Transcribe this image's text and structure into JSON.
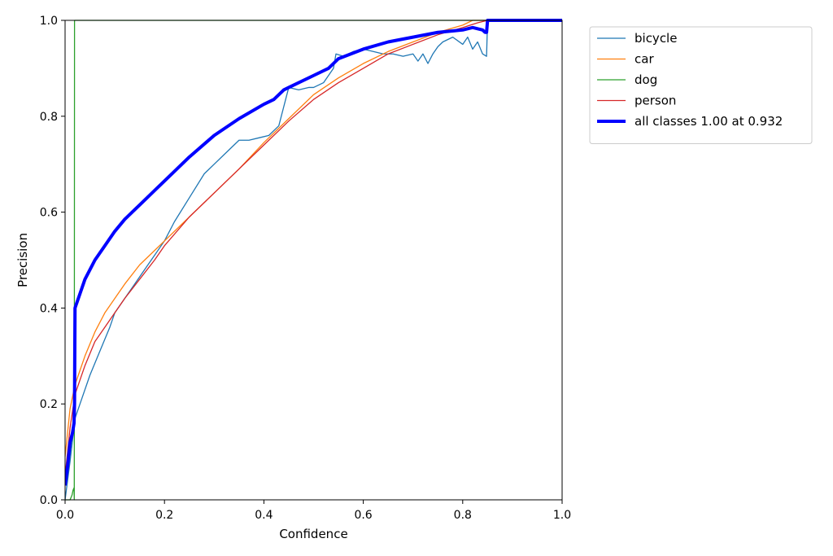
{
  "chart_data": {
    "type": "line",
    "title": "",
    "xlabel": "Confidence",
    "ylabel": "Precision",
    "xlim": [
      0,
      1
    ],
    "ylim": [
      0,
      1
    ],
    "xticks": [
      "0.0",
      "0.2",
      "0.4",
      "0.6",
      "0.8",
      "1.0"
    ],
    "yticks": [
      "0.0",
      "0.2",
      "0.4",
      "0.6",
      "0.8",
      "1.0"
    ],
    "grid": false,
    "legend_position": "outside-top-right",
    "series": [
      {
        "name": "bicycle",
        "color": "#1f77b4",
        "line_weight": "thin",
        "x": [
          0.0,
          0.01,
          0.02,
          0.03,
          0.05,
          0.07,
          0.09,
          0.1,
          0.12,
          0.14,
          0.16,
          0.18,
          0.2,
          0.22,
          0.25,
          0.28,
          0.3,
          0.33,
          0.35,
          0.37,
          0.39,
          0.41,
          0.43,
          0.44,
          0.45,
          0.47,
          0.49,
          0.5,
          0.52,
          0.54,
          0.545,
          0.56,
          0.58,
          0.6,
          0.62,
          0.64,
          0.66,
          0.68,
          0.7,
          0.71,
          0.72,
          0.73,
          0.74,
          0.75,
          0.76,
          0.78,
          0.8,
          0.81,
          0.82,
          0.83,
          0.84,
          0.848,
          0.85,
          0.86,
          0.9,
          1.0
        ],
        "y": [
          0.0,
          0.08,
          0.17,
          0.2,
          0.26,
          0.31,
          0.36,
          0.39,
          0.42,
          0.45,
          0.48,
          0.51,
          0.54,
          0.58,
          0.63,
          0.68,
          0.7,
          0.73,
          0.75,
          0.75,
          0.755,
          0.76,
          0.78,
          0.82,
          0.86,
          0.855,
          0.86,
          0.86,
          0.87,
          0.9,
          0.93,
          0.925,
          0.935,
          0.94,
          0.935,
          0.93,
          0.93,
          0.925,
          0.93,
          0.915,
          0.93,
          0.91,
          0.93,
          0.945,
          0.955,
          0.965,
          0.95,
          0.965,
          0.94,
          0.955,
          0.93,
          0.925,
          1.0,
          1.0,
          1.0,
          1.0
        ]
      },
      {
        "name": "car",
        "color": "#ff7f0e",
        "line_weight": "thin",
        "x": [
          0.0,
          0.01,
          0.02,
          0.04,
          0.06,
          0.08,
          0.1,
          0.12,
          0.15,
          0.18,
          0.2,
          0.25,
          0.3,
          0.35,
          0.4,
          0.45,
          0.5,
          0.55,
          0.6,
          0.65,
          0.7,
          0.75,
          0.8,
          0.82,
          0.85,
          0.9,
          1.0
        ],
        "y": [
          0.09,
          0.19,
          0.24,
          0.3,
          0.35,
          0.39,
          0.42,
          0.45,
          0.49,
          0.52,
          0.54,
          0.59,
          0.64,
          0.69,
          0.745,
          0.795,
          0.845,
          0.88,
          0.91,
          0.935,
          0.955,
          0.975,
          0.99,
          1.0,
          1.0,
          1.0,
          1.0
        ]
      },
      {
        "name": "dog",
        "color": "#2ca02c",
        "line_weight": "thin",
        "x": [
          0.0,
          0.005,
          0.01,
          0.014,
          0.016,
          0.018,
          0.0185,
          0.019,
          0.02,
          0.3,
          0.6,
          1.0
        ],
        "y": [
          0.0,
          0.0,
          0.0,
          0.01,
          0.02,
          0.025,
          0.0,
          1.0,
          1.0,
          1.0,
          1.0,
          1.0
        ]
      },
      {
        "name": "person",
        "color": "#d62728",
        "line_weight": "thin",
        "x": [
          0.0,
          0.01,
          0.02,
          0.04,
          0.06,
          0.08,
          0.1,
          0.12,
          0.15,
          0.18,
          0.2,
          0.25,
          0.3,
          0.35,
          0.4,
          0.45,
          0.5,
          0.55,
          0.6,
          0.65,
          0.7,
          0.75,
          0.8,
          0.83,
          0.85,
          0.9,
          1.0
        ],
        "y": [
          0.05,
          0.15,
          0.22,
          0.28,
          0.33,
          0.36,
          0.39,
          0.42,
          0.46,
          0.5,
          0.53,
          0.59,
          0.64,
          0.69,
          0.74,
          0.79,
          0.835,
          0.87,
          0.9,
          0.93,
          0.95,
          0.97,
          0.985,
          0.995,
          1.0,
          1.0,
          1.0
        ]
      },
      {
        "name": "all classes 1.00 at 0.932",
        "color": "#0000ff",
        "line_weight": "thick",
        "x": [
          0.0,
          0.005,
          0.01,
          0.015,
          0.018,
          0.019,
          0.02,
          0.03,
          0.04,
          0.05,
          0.06,
          0.08,
          0.1,
          0.12,
          0.15,
          0.18,
          0.2,
          0.25,
          0.3,
          0.35,
          0.4,
          0.42,
          0.43,
          0.44,
          0.45,
          0.5,
          0.53,
          0.55,
          0.6,
          0.65,
          0.7,
          0.75,
          0.78,
          0.8,
          0.82,
          0.84,
          0.845,
          0.848,
          0.85,
          0.9,
          0.932,
          1.0
        ],
        "y": [
          0.03,
          0.07,
          0.12,
          0.14,
          0.16,
          0.2,
          0.4,
          0.43,
          0.46,
          0.48,
          0.5,
          0.53,
          0.56,
          0.585,
          0.615,
          0.645,
          0.665,
          0.715,
          0.76,
          0.795,
          0.825,
          0.835,
          0.845,
          0.855,
          0.86,
          0.885,
          0.9,
          0.92,
          0.94,
          0.955,
          0.965,
          0.975,
          0.978,
          0.98,
          0.985,
          0.98,
          0.975,
          0.975,
          1.0,
          1.0,
          1.0,
          1.0
        ]
      }
    ]
  }
}
